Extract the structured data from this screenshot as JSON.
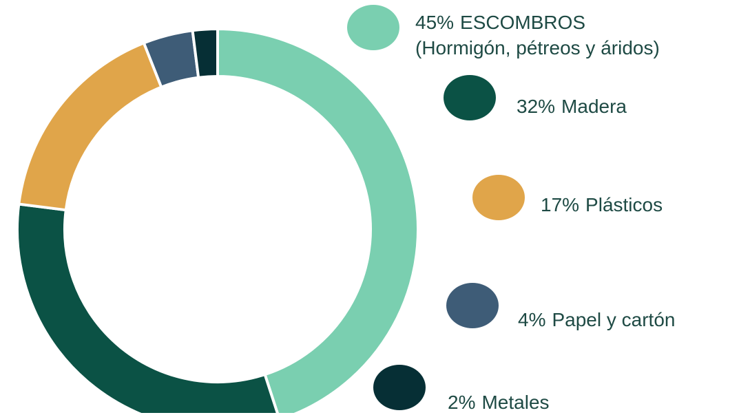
{
  "chart_data": {
    "type": "donut",
    "categories": [
      "ESCOMBROS\n(Hormigón, pétreos y áridos)",
      "Madera",
      "Plásticos",
      "Papel y cartón",
      "Metales"
    ],
    "values": [
      45,
      32,
      17,
      4,
      2
    ],
    "value_labels": [
      "45%",
      "32%",
      "17%",
      "4%",
      "2%"
    ],
    "colors": [
      "#7acfb0",
      "#0b5245",
      "#e0a54a",
      "#3e5c77",
      "#062f35"
    ]
  }
}
